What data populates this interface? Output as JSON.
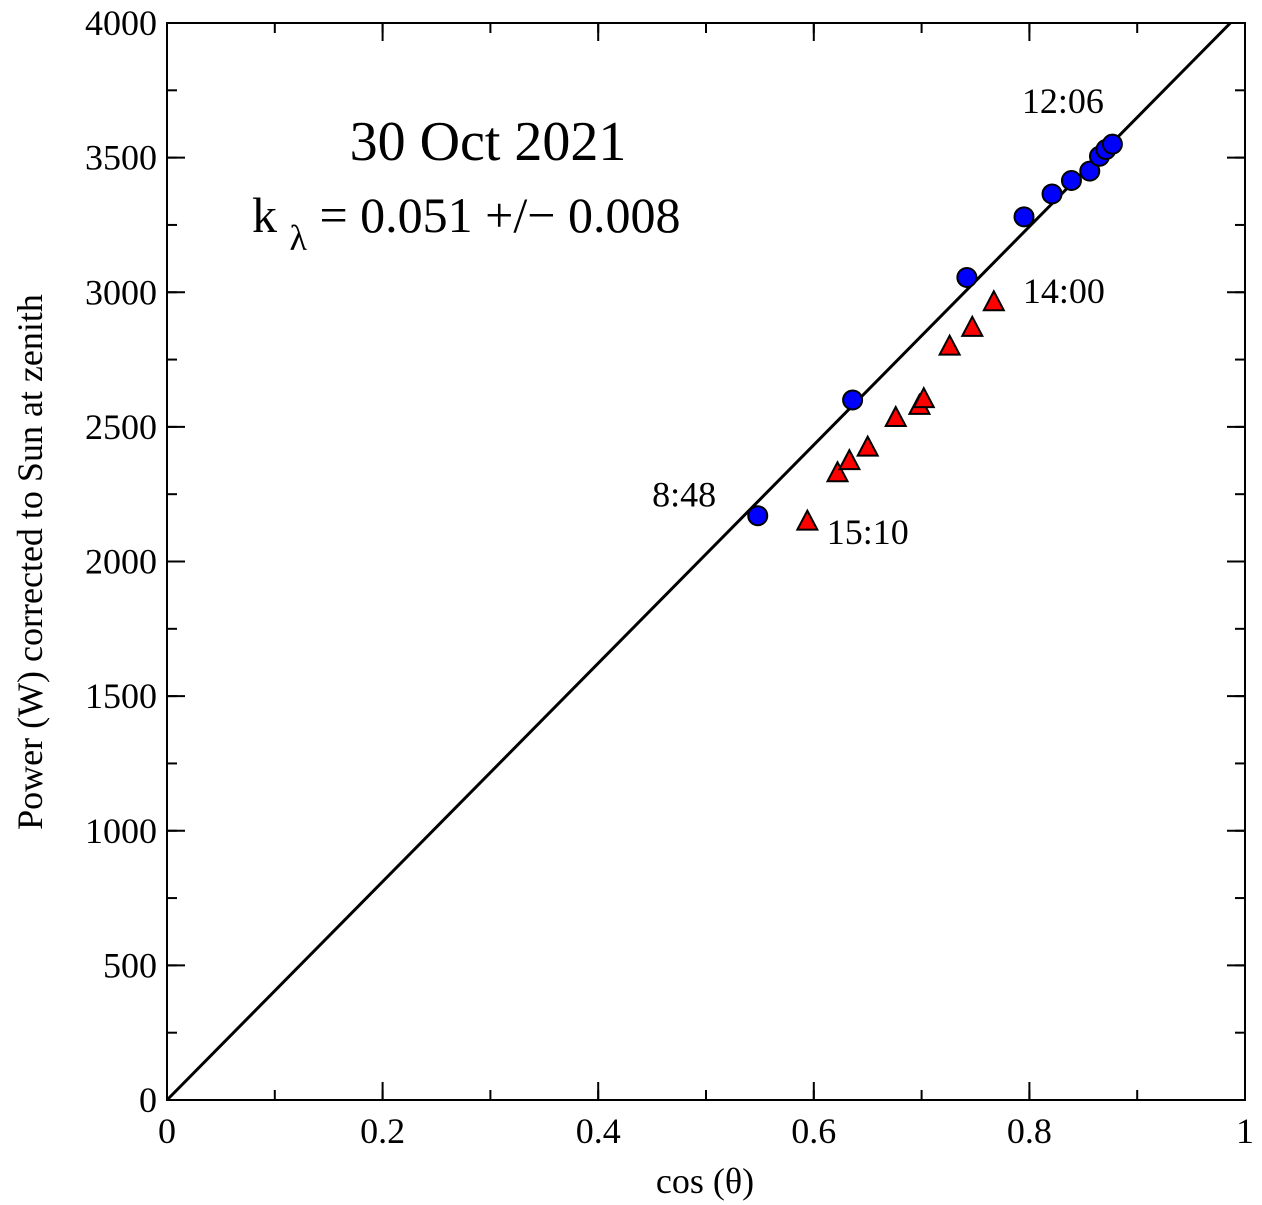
{
  "chart_data": {
    "type": "scatter",
    "title": "30 Oct 2021",
    "fit_text": {
      "k": "k",
      "subscript": "λ",
      "rest": " = 0.051 +/− 0.008"
    },
    "xlabel": "cos (θ)",
    "ylabel": "Power (W) corrected to Sun at zenith",
    "xlim": [
      0,
      1
    ],
    "ylim": [
      0,
      4000
    ],
    "x_ticks": [
      {
        "value": 0,
        "label": "0"
      },
      {
        "value": 0.2,
        "label": "0.2"
      },
      {
        "value": 0.4,
        "label": "0.4"
      },
      {
        "value": 0.6,
        "label": "0.6"
      },
      {
        "value": 0.8,
        "label": "0.8"
      },
      {
        "value": 1,
        "label": "1"
      }
    ],
    "x_minor_step": 0.1,
    "y_ticks": [
      {
        "value": 0,
        "label": "0"
      },
      {
        "value": 500,
        "label": "500"
      },
      {
        "value": 1000,
        "label": "1000"
      },
      {
        "value": 1500,
        "label": "1500"
      },
      {
        "value": 2000,
        "label": "2000"
      },
      {
        "value": 2500,
        "label": "2500"
      },
      {
        "value": 3000,
        "label": "3000"
      },
      {
        "value": 3500,
        "label": "3500"
      },
      {
        "value": 4000,
        "label": "4000"
      }
    ],
    "y_minor_step": 250,
    "grid": false,
    "series": [
      {
        "marker": "circle",
        "color": "#0000ff",
        "points": [
          {
            "x": 0.548,
            "y": 2170
          },
          {
            "x": 0.636,
            "y": 2600
          },
          {
            "x": 0.742,
            "y": 3055
          },
          {
            "x": 0.795,
            "y": 3280
          },
          {
            "x": 0.821,
            "y": 3365
          },
          {
            "x": 0.839,
            "y": 3415
          },
          {
            "x": 0.856,
            "y": 3450
          },
          {
            "x": 0.865,
            "y": 3505
          },
          {
            "x": 0.871,
            "y": 3530
          },
          {
            "x": 0.877,
            "y": 3550
          }
        ]
      },
      {
        "marker": "triangle",
        "color": "#ff0000",
        "points": [
          {
            "x": 0.594,
            "y": 2145
          },
          {
            "x": 0.622,
            "y": 2325
          },
          {
            "x": 0.633,
            "y": 2370
          },
          {
            "x": 0.65,
            "y": 2420
          },
          {
            "x": 0.676,
            "y": 2530
          },
          {
            "x": 0.698,
            "y": 2575
          },
          {
            "x": 0.702,
            "y": 2600
          },
          {
            "x": 0.726,
            "y": 2795
          },
          {
            "x": 0.747,
            "y": 2865
          },
          {
            "x": 0.767,
            "y": 2960
          }
        ]
      }
    ],
    "fit_line": {
      "x": [
        0,
        1
      ],
      "y": [
        0,
        4055
      ],
      "color": "#000000"
    },
    "annotations": [
      {
        "text": "12:06",
        "x": 0.793,
        "y": 3665,
        "anchor": "start"
      },
      {
        "text": "14:00",
        "x": 0.794,
        "y": 2960,
        "anchor": "start"
      },
      {
        "text": "8:48",
        "x": 0.45,
        "y": 2205,
        "anchor": "start"
      },
      {
        "text": "15:10",
        "x": 0.612,
        "y": 2065,
        "anchor": "start"
      }
    ]
  }
}
